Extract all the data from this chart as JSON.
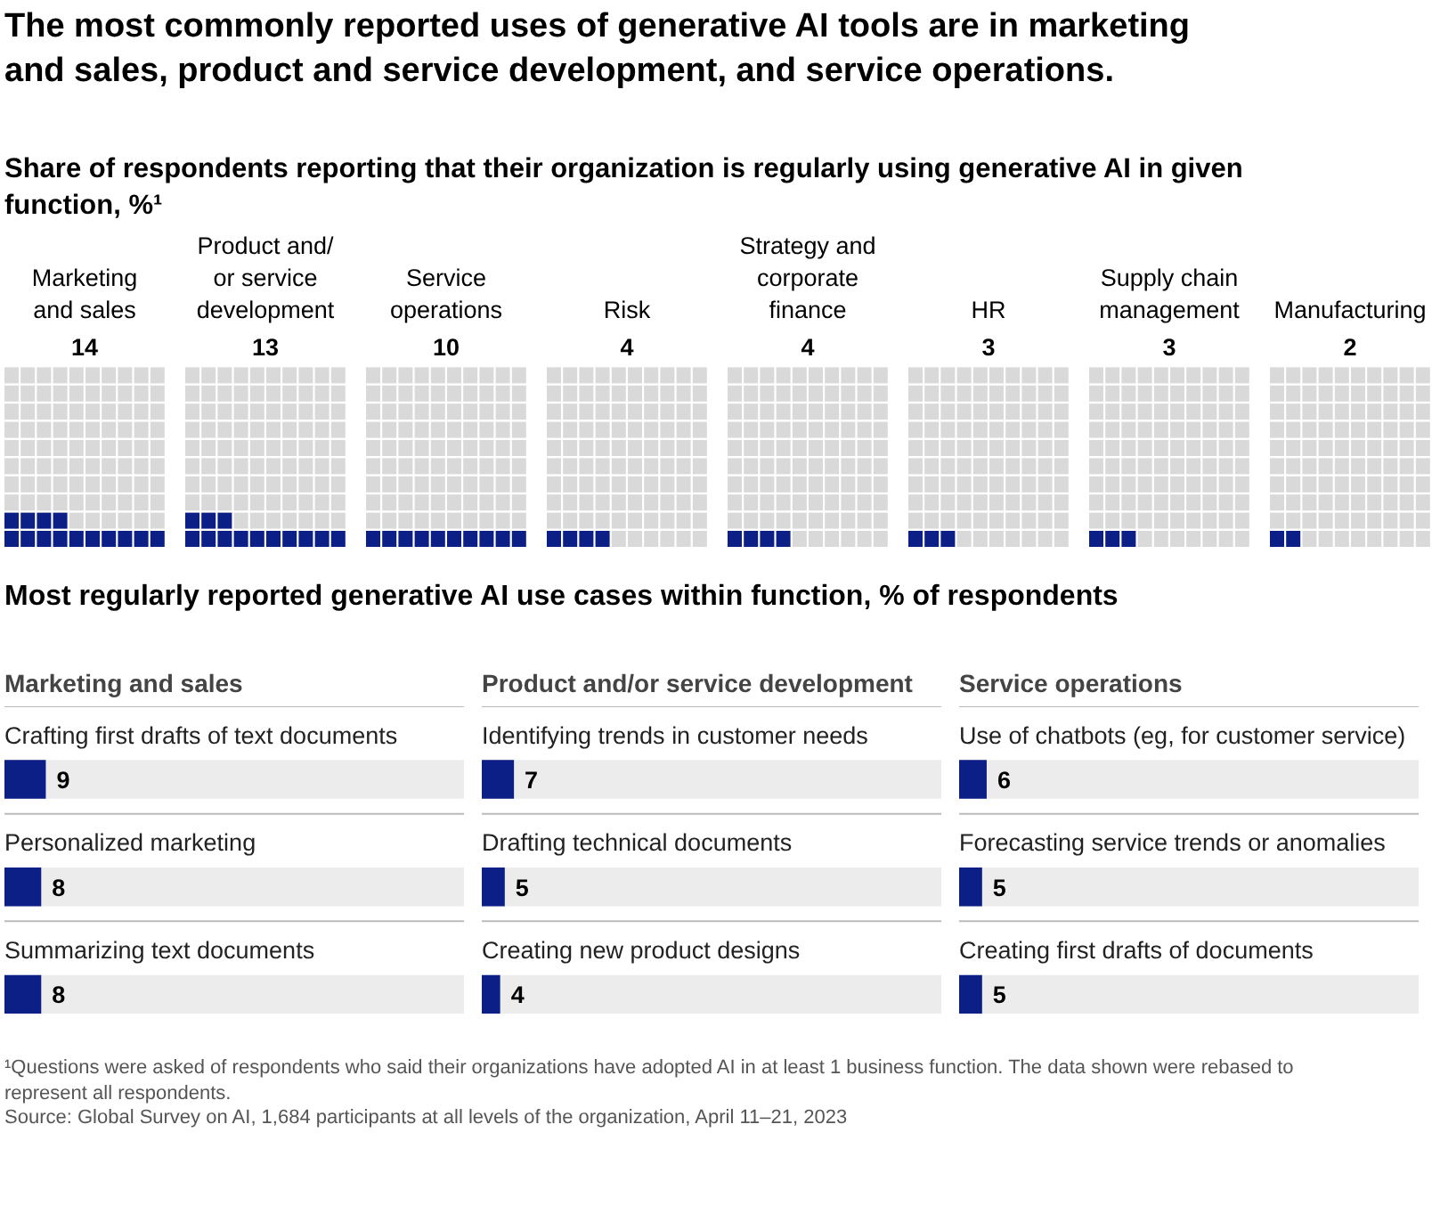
{
  "chart_data": [
    {
      "type": "other",
      "title": "The most commonly reported uses of generative AI tools are in marketing\nand sales, product and service development, and service operations.",
      "subtitle": "Share of respondents reporting that their organization is regularly using generative AI in given\nfunction, %¹",
      "categories": [
        "Marketing\nand sales",
        "Product and/\nor service\ndevelopment",
        "Service\noperations",
        "Risk",
        "Strategy and\ncorporate\nfinance",
        "HR",
        "Supply chain\nmanagement",
        "Manufacturing"
      ],
      "values": [
        14,
        13,
        10,
        4,
        4,
        3,
        3,
        2
      ],
      "data_labels": true
    },
    {
      "type": "other",
      "title": "Most regularly reported generative AI use cases within function, % of respondents"
    },
    {
      "type": "bar",
      "orientation": "horizontal",
      "title": "Marketing and sales",
      "categories": [
        "Crafting first drafts of text documents",
        "Personalized marketing",
        "Summarizing text documents"
      ],
      "values": [
        9,
        8,
        8
      ],
      "color": "#0b1f87",
      "xlim": [
        0,
        100
      ],
      "data_labels": true,
      "tick_labels": false
    },
    {
      "type": "bar",
      "orientation": "horizontal",
      "title": "Product and/or service development",
      "categories": [
        "Identifying trends in customer needs",
        "Drafting technical documents",
        "Creating new product designs"
      ],
      "values": [
        7,
        5,
        4
      ],
      "color": "#0b1f87",
      "xlim": [
        0,
        100
      ],
      "data_labels": true,
      "tick_labels": false
    },
    {
      "type": "bar",
      "orientation": "horizontal",
      "title": "Service operations",
      "categories": [
        "Use of chatbots (eg, for customer service)",
        "Forecasting service trends or anomalies",
        "Creating first drafts of documents"
      ],
      "values": [
        6,
        5,
        5
      ],
      "color": "#0b1f87",
      "xlim": [
        0,
        100
      ],
      "data_labels": true,
      "tick_labels": false
    },
    {
      "type": "other",
      "annotations": [
        "¹Questions were asked of respondents who said their organizations have adopted AI in at least 1 business function. The data shown were rebased to\n represent all respondents.",
        "Source: Global Survey on AI, 1,684 participants at all levels of the organization, April 11–21, 2023"
      ]
    }
  ]
}
